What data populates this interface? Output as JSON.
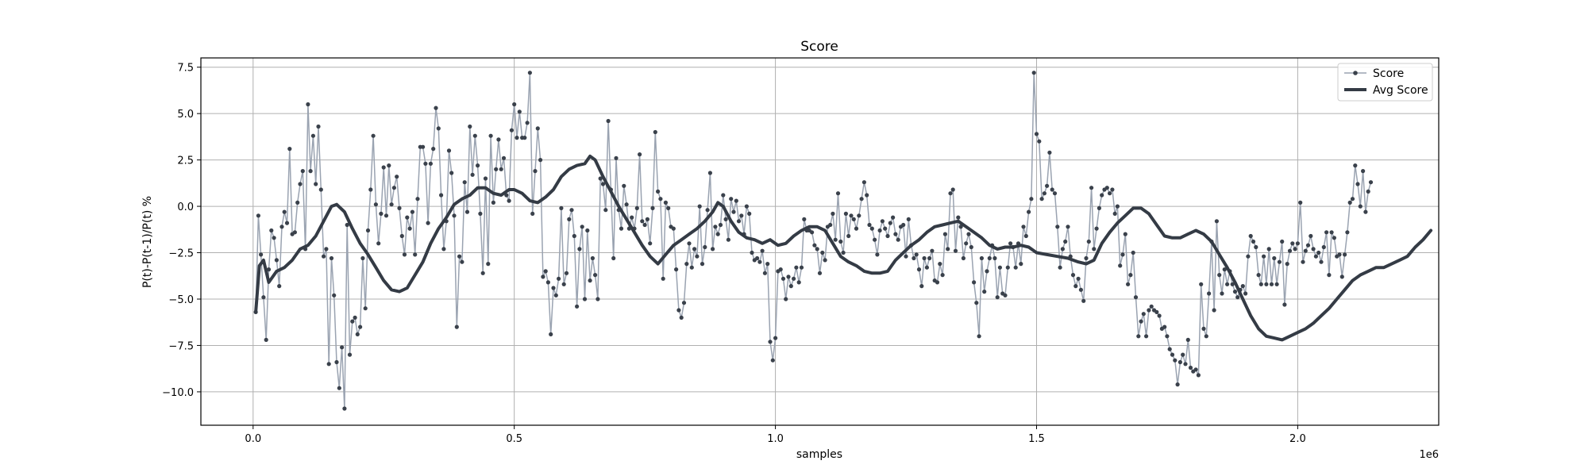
{
  "chart_data": {
    "type": "line",
    "title": "Score",
    "xlabel": "samples",
    "ylabel": "P(t)-P(t-1)/P(t) %",
    "x_offset_label": "1e6",
    "xlim": [
      -0.1,
      2.27
    ],
    "ylim": [
      -11.8,
      8.0
    ],
    "xticks": [
      0.0,
      0.5,
      1.0,
      1.5,
      2.0
    ],
    "xtick_labels": [
      "0.0",
      "0.5",
      "1.0",
      "1.5",
      "2.0"
    ],
    "yticks": [
      7.5,
      5.0,
      2.5,
      0.0,
      -2.5,
      -5.0,
      -7.5,
      -10.0
    ],
    "ytick_labels": [
      "7.5",
      "5.0",
      "2.5",
      "0.0",
      "−2.5",
      "−5.0",
      "−7.5",
      "−10.0"
    ],
    "grid": true,
    "legend_position": "top-right",
    "x_start": 0.005,
    "x_step": 0.005,
    "series": [
      {
        "name": "Score",
        "style": "line-with-markers",
        "color": "#9aa3b1",
        "marker_color": "#3a414b",
        "values": [
          -5.7,
          -0.5,
          -2.6,
          -4.9,
          -7.2,
          -3.4,
          -1.3,
          -1.7,
          -2.9,
          -4.3,
          -1.1,
          -0.3,
          -0.9,
          3.1,
          -1.5,
          -1.4,
          0.2,
          1.2,
          1.9,
          -2.3,
          5.5,
          1.9,
          3.8,
          1.2,
          4.3,
          0.9,
          -2.7,
          -2.3,
          -8.5,
          -2.8,
          -4.8,
          -8.4,
          -9.8,
          -7.6,
          -10.9,
          -1.0,
          -8.0,
          -6.2,
          -6.0,
          -6.9,
          -6.5,
          -2.8,
          -5.5,
          -1.3,
          0.9,
          3.8,
          0.1,
          -2.0,
          -0.4,
          2.1,
          -0.5,
          2.2,
          0.1,
          1.0,
          1.6,
          -0.1,
          -1.6,
          -2.6,
          -0.6,
          -1.2,
          -0.3,
          -2.6,
          0.4,
          3.2,
          3.2,
          2.3,
          -0.9,
          2.3,
          3.1,
          5.3,
          4.2,
          0.6,
          -2.3,
          -0.8,
          3.0,
          1.8,
          -0.5,
          -6.5,
          -2.7,
          -3.0,
          1.3,
          -0.3,
          4.3,
          1.7,
          3.8,
          2.2,
          -0.4,
          -3.6,
          1.5,
          -3.1,
          3.8,
          0.2,
          2.0,
          3.6,
          2.0,
          2.6,
          0.6,
          0.3,
          4.1,
          5.5,
          3.7,
          5.1,
          3.7,
          3.7,
          4.5,
          7.2,
          -0.4,
          1.9,
          4.2,
          2.5,
          -3.8,
          -3.5,
          -4.1,
          -6.9,
          -4.4,
          -4.8,
          -3.9,
          -0.1,
          -4.2,
          -3.6,
          -0.7,
          -0.2,
          -1.6,
          -5.4,
          -2.3,
          -1.1,
          -5.0,
          -1.3,
          -4.0,
          -2.8,
          -3.7,
          -5.0,
          1.5,
          1.2,
          -0.2,
          4.6,
          0.9,
          -2.8,
          2.6,
          -0.2,
          -1.2,
          1.1,
          0.1,
          -1.2,
          -0.6,
          -1.2,
          -0.1,
          2.8,
          -0.8,
          -1.0,
          -0.7,
          -2.0,
          -0.1,
          4.0,
          0.8,
          0.4,
          -3.9,
          0.2,
          -0.1,
          -1.1,
          -1.2,
          -3.4,
          -5.6,
          -6.0,
          -5.2,
          -3.1,
          -2.0,
          -3.3,
          -2.3,
          -2.7,
          0.0,
          -3.1,
          -2.2,
          -0.2,
          1.8,
          -2.3,
          -1.1,
          -1.5,
          -1.0,
          0.6,
          -0.7,
          -1.8,
          0.4,
          -0.3,
          0.3,
          -0.8,
          -0.5,
          -1.5,
          0.0,
          -0.4,
          -2.5,
          -2.9,
          -2.8,
          -3.0,
          -2.4,
          -3.6,
          -3.1,
          -7.3,
          -8.3,
          -7.1,
          -3.5,
          -3.4,
          -3.9,
          -5.0,
          -3.8,
          -4.3,
          -3.9,
          -3.3,
          -4.1,
          -3.3,
          -0.7,
          -1.3,
          -1.3,
          -1.4,
          -2.1,
          -2.3,
          -3.6,
          -2.5,
          -2.9,
          -1.1,
          -1.0,
          -0.4,
          -1.8,
          0.7,
          -1.9,
          -2.5,
          -0.4,
          -1.6,
          -0.5,
          -0.7,
          -1.2,
          -0.5,
          0.4,
          1.3,
          0.6,
          -1.0,
          -1.2,
          -1.8,
          -2.6,
          -1.3,
          -0.8,
          -1.2,
          -1.6,
          -0.9,
          -0.6,
          -1.5,
          -1.8,
          -1.1,
          -1.0,
          -2.7,
          -0.7,
          -2.1,
          -2.8,
          -2.6,
          -3.4,
          -4.3,
          -2.8,
          -3.3,
          -2.8,
          -2.4,
          -4.0,
          -4.1,
          -3.1,
          -3.7,
          -1.5,
          -2.3,
          0.7,
          0.9,
          -2.4,
          -0.6,
          -1.1,
          -2.8,
          -2.0,
          -1.5,
          -2.2,
          -4.1,
          -5.2,
          -7.0,
          -2.8,
          -4.6,
          -3.5,
          -2.8,
          -2.1,
          -2.8,
          -4.9,
          -3.3,
          -4.7,
          -4.8,
          -3.3,
          -2.0,
          -2.2,
          -3.3,
          -2.0,
          -3.1,
          -1.1,
          -1.6,
          -0.3,
          0.4,
          7.2,
          3.9,
          3.5,
          0.4,
          0.7,
          1.1,
          2.9,
          0.9,
          0.7,
          -1.1,
          -3.3,
          -2.3,
          -1.9,
          -1.1,
          -2.7,
          -3.7,
          -4.3,
          -3.9,
          -4.5,
          -5.1,
          -2.8,
          -1.9,
          1.0,
          -2.3,
          -1.2,
          -0.1,
          0.6,
          0.9,
          1.0,
          0.7,
          0.9,
          -0.4,
          0.0,
          -3.2,
          -2.6,
          -1.5,
          -4.2,
          -3.7,
          -2.5,
          -4.9,
          -7.0,
          -6.2,
          -5.8,
          -7.0,
          -5.6,
          -5.4,
          -5.6,
          -5.7,
          -5.9,
          -6.6,
          -6.5,
          -7.0,
          -7.7,
          -8.0,
          -8.3,
          -9.6,
          -8.4,
          -8.0,
          -8.5,
          -7.2,
          -8.7,
          -8.9,
          -8.8,
          -9.1,
          -4.2,
          -6.6,
          -7.0,
          -4.7,
          -1.9,
          -5.6,
          -0.8,
          -3.7,
          -4.7,
          -3.4,
          -4.2,
          -3.5,
          -4.2,
          -4.6,
          -4.9,
          -4.5,
          -4.3,
          -4.7,
          -2.7,
          -1.6,
          -1.9,
          -2.2,
          -3.7,
          -4.2,
          -2.7,
          -4.2,
          -2.3,
          -4.2,
          -2.8,
          -4.2,
          -3.0,
          -1.9,
          -5.3,
          -3.1,
          -2.4,
          -2.0,
          -2.3,
          -2.0,
          0.2,
          -3.0,
          -2.4,
          -2.1,
          -1.6,
          -2.3,
          -2.7,
          -2.5,
          -3.0,
          -2.2,
          -1.4,
          -3.7,
          -1.4,
          -1.7,
          -2.7,
          -2.6,
          -3.8,
          -2.6,
          -1.4,
          0.2,
          0.4,
          2.2,
          1.2,
          0.0,
          1.9,
          -0.3,
          0.8,
          1.3
        ]
      },
      {
        "name": "Avg Score",
        "style": "line",
        "color": "#343b45",
        "points": [
          [
            0.005,
            -5.7
          ],
          [
            0.012,
            -3.2
          ],
          [
            0.02,
            -2.9
          ],
          [
            0.03,
            -4.1
          ],
          [
            0.045,
            -3.5
          ],
          [
            0.06,
            -3.3
          ],
          [
            0.075,
            -2.9
          ],
          [
            0.09,
            -2.3
          ],
          [
            0.105,
            -2.1
          ],
          [
            0.12,
            -1.6
          ],
          [
            0.135,
            -0.8
          ],
          [
            0.15,
            0.0
          ],
          [
            0.16,
            0.1
          ],
          [
            0.175,
            -0.3
          ],
          [
            0.19,
            -1.2
          ],
          [
            0.205,
            -2.0
          ],
          [
            0.22,
            -2.6
          ],
          [
            0.235,
            -3.3
          ],
          [
            0.25,
            -4.0
          ],
          [
            0.265,
            -4.5
          ],
          [
            0.28,
            -4.6
          ],
          [
            0.295,
            -4.4
          ],
          [
            0.31,
            -3.7
          ],
          [
            0.325,
            -3.0
          ],
          [
            0.34,
            -2.0
          ],
          [
            0.355,
            -1.2
          ],
          [
            0.37,
            -0.6
          ],
          [
            0.385,
            0.1
          ],
          [
            0.4,
            0.4
          ],
          [
            0.415,
            0.6
          ],
          [
            0.43,
            1.0
          ],
          [
            0.445,
            1.0
          ],
          [
            0.46,
            0.7
          ],
          [
            0.475,
            0.6
          ],
          [
            0.49,
            0.9
          ],
          [
            0.5,
            0.9
          ],
          [
            0.515,
            0.7
          ],
          [
            0.53,
            0.3
          ],
          [
            0.545,
            0.2
          ],
          [
            0.56,
            0.5
          ],
          [
            0.575,
            0.9
          ],
          [
            0.59,
            1.6
          ],
          [
            0.605,
            2.0
          ],
          [
            0.62,
            2.2
          ],
          [
            0.635,
            2.3
          ],
          [
            0.645,
            2.7
          ],
          [
            0.655,
            2.5
          ],
          [
            0.67,
            1.6
          ],
          [
            0.685,
            0.8
          ],
          [
            0.7,
            0.0
          ],
          [
            0.715,
            -0.7
          ],
          [
            0.73,
            -1.4
          ],
          [
            0.745,
            -2.1
          ],
          [
            0.76,
            -2.7
          ],
          [
            0.775,
            -3.1
          ],
          [
            0.79,
            -2.6
          ],
          [
            0.805,
            -2.1
          ],
          [
            0.82,
            -1.8
          ],
          [
            0.835,
            -1.5
          ],
          [
            0.85,
            -1.2
          ],
          [
            0.865,
            -0.8
          ],
          [
            0.88,
            -0.3
          ],
          [
            0.89,
            0.2
          ],
          [
            0.9,
            0.0
          ],
          [
            0.915,
            -0.8
          ],
          [
            0.93,
            -1.4
          ],
          [
            0.945,
            -1.7
          ],
          [
            0.96,
            -1.8
          ],
          [
            0.975,
            -2.0
          ],
          [
            0.99,
            -1.8
          ],
          [
            1.005,
            -2.1
          ],
          [
            1.02,
            -2.0
          ],
          [
            1.035,
            -1.6
          ],
          [
            1.05,
            -1.3
          ],
          [
            1.065,
            -1.1
          ],
          [
            1.08,
            -1.1
          ],
          [
            1.095,
            -1.3
          ],
          [
            1.11,
            -2.0
          ],
          [
            1.125,
            -2.7
          ],
          [
            1.14,
            -3.0
          ],
          [
            1.155,
            -3.2
          ],
          [
            1.17,
            -3.5
          ],
          [
            1.185,
            -3.6
          ],
          [
            1.2,
            -3.6
          ],
          [
            1.215,
            -3.5
          ],
          [
            1.23,
            -2.9
          ],
          [
            1.245,
            -2.5
          ],
          [
            1.26,
            -2.1
          ],
          [
            1.275,
            -1.8
          ],
          [
            1.29,
            -1.4
          ],
          [
            1.305,
            -1.1
          ],
          [
            1.32,
            -1.0
          ],
          [
            1.335,
            -0.9
          ],
          [
            1.35,
            -0.8
          ],
          [
            1.365,
            -1.1
          ],
          [
            1.38,
            -1.4
          ],
          [
            1.395,
            -1.7
          ],
          [
            1.41,
            -2.1
          ],
          [
            1.425,
            -2.3
          ],
          [
            1.44,
            -2.2
          ],
          [
            1.455,
            -2.2
          ],
          [
            1.47,
            -2.1
          ],
          [
            1.485,
            -2.2
          ],
          [
            1.5,
            -2.5
          ],
          [
            1.52,
            -2.6
          ],
          [
            1.54,
            -2.7
          ],
          [
            1.56,
            -2.8
          ],
          [
            1.58,
            -3.0
          ],
          [
            1.595,
            -3.1
          ],
          [
            1.61,
            -2.9
          ],
          [
            1.625,
            -2.0
          ],
          [
            1.64,
            -1.4
          ],
          [
            1.655,
            -0.9
          ],
          [
            1.67,
            -0.5
          ],
          [
            1.685,
            -0.1
          ],
          [
            1.7,
            -0.1
          ],
          [
            1.715,
            -0.4
          ],
          [
            1.73,
            -1.0
          ],
          [
            1.745,
            -1.6
          ],
          [
            1.76,
            -1.7
          ],
          [
            1.775,
            -1.7
          ],
          [
            1.79,
            -1.5
          ],
          [
            1.805,
            -1.3
          ],
          [
            1.82,
            -1.5
          ],
          [
            1.835,
            -1.9
          ],
          [
            1.85,
            -2.6
          ],
          [
            1.865,
            -3.3
          ],
          [
            1.88,
            -4.1
          ],
          [
            1.895,
            -5.0
          ],
          [
            1.91,
            -5.9
          ],
          [
            1.925,
            -6.6
          ],
          [
            1.94,
            -7.0
          ],
          [
            1.955,
            -7.1
          ],
          [
            1.97,
            -7.2
          ],
          [
            1.985,
            -7.0
          ],
          [
            2.0,
            -6.8
          ],
          [
            2.015,
            -6.6
          ],
          [
            2.03,
            -6.3
          ],
          [
            2.045,
            -5.9
          ],
          [
            2.06,
            -5.5
          ],
          [
            2.075,
            -5.0
          ],
          [
            2.09,
            -4.5
          ],
          [
            2.105,
            -4.0
          ],
          [
            2.12,
            -3.7
          ],
          [
            2.135,
            -3.5
          ],
          [
            2.15,
            -3.3
          ],
          [
            2.165,
            -3.3
          ],
          [
            2.18,
            -3.1
          ],
          [
            2.195,
            -2.9
          ],
          [
            2.21,
            -2.7
          ],
          [
            2.225,
            -2.2
          ],
          [
            2.24,
            -1.8
          ],
          [
            2.255,
            -1.3
          ]
        ]
      }
    ]
  }
}
